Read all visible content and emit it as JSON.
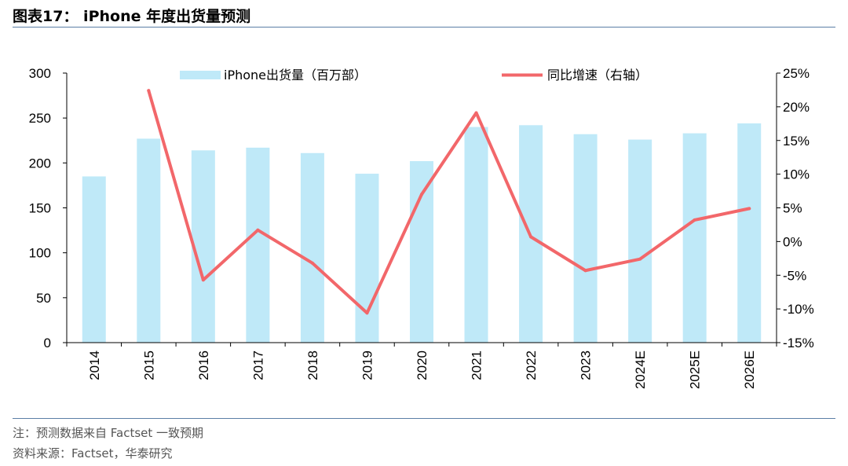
{
  "header": {
    "title": "图表17： iPhone 年度出货量预测"
  },
  "footer": {
    "note": "注：预测数据来自 Factset 一致预期",
    "source": "资料来源：Factset，华泰研究"
  },
  "colors": {
    "bar": "#bfe9f8",
    "line": "#f2676a",
    "rule": "#5b7fa6"
  },
  "chart_data": {
    "type": "bar",
    "categories": [
      "2014",
      "2015",
      "2016",
      "2017",
      "2018",
      "2019",
      "2020",
      "2021",
      "2022",
      "2023",
      "2024E",
      "2025E",
      "2026E"
    ],
    "series": [
      {
        "name": "iPhone出货量（百万部）",
        "type": "bar",
        "axis": "left",
        "values": [
          185,
          227,
          214,
          217,
          211,
          188,
          202,
          240,
          242,
          232,
          226,
          233,
          244
        ]
      },
      {
        "name": "同比增速（右轴）",
        "type": "line",
        "axis": "right",
        "values": [
          null,
          22.4,
          -5.7,
          1.7,
          -3.2,
          -10.6,
          7.0,
          19.1,
          0.7,
          -4.3,
          -2.6,
          3.2,
          4.9
        ]
      }
    ],
    "y_left": {
      "min": 0,
      "max": 300,
      "ticks": [
        "0",
        "50",
        "100",
        "150",
        "200",
        "250",
        "300"
      ]
    },
    "y_right": {
      "min": -15,
      "max": 25,
      "ticks": [
        "-15%",
        "-10%",
        "-5%",
        "0%",
        "5%",
        "10%",
        "15%",
        "20%",
        "25%"
      ]
    },
    "legend_position": "top",
    "grid": false
  }
}
